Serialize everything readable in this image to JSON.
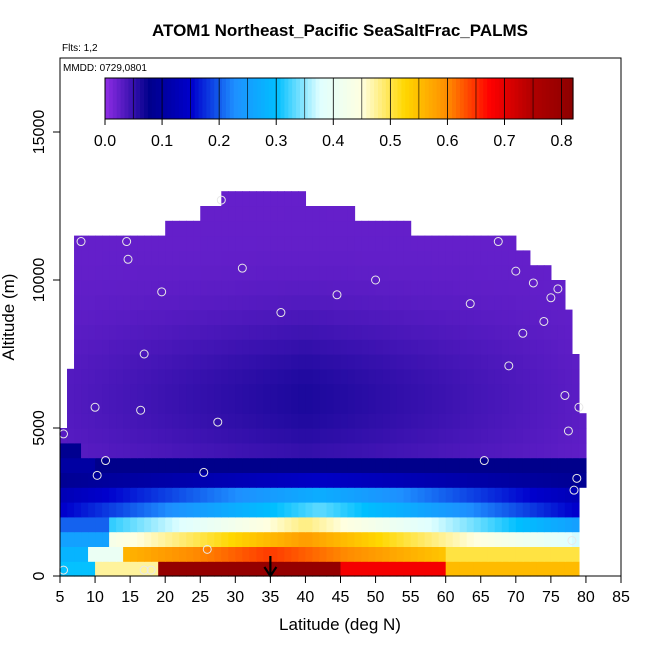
{
  "chart_data": {
    "type": "heatmap",
    "title": "ATOM1 Northeast_Pacific SeaSaltFrac_PALMS",
    "annotations": [
      "Flts: 1,2",
      "MMDD: 0729,0801"
    ],
    "xlabel": "Latitude (deg N)",
    "ylabel": "Altitude (m)",
    "xlim": [
      5,
      85
    ],
    "ylim": [
      0,
      17500
    ],
    "xticks": [
      "5",
      "10",
      "15",
      "20",
      "25",
      "30",
      "35",
      "40",
      "45",
      "50",
      "55",
      "60",
      "65",
      "70",
      "75",
      "80",
      "85"
    ],
    "yticks": [
      "0",
      "5000",
      "10000",
      "15000"
    ],
    "colorbar": {
      "ticks": [
        "0.0",
        "0.1",
        "0.2",
        "0.3",
        "0.4",
        "0.5",
        "0.6",
        "0.7",
        "0.8"
      ],
      "range": [
        0,
        0.82
      ],
      "placement": "top-inside",
      "colors": [
        "#8a2be2",
        "#00008b",
        "#0000cd",
        "#1e90ff",
        "#00bfff",
        "#e0ffff",
        "#ffffe0",
        "#ffd700",
        "#ff8c00",
        "#ff0000",
        "#b00000",
        "#8b0000"
      ]
    },
    "arrow_latitude": 35,
    "envelope": [
      {
        "alt": 500,
        "lat_min": 5,
        "lat_max": 79
      },
      {
        "alt": 1000,
        "lat_min": 5,
        "lat_max": 79
      },
      {
        "alt": 1500,
        "lat_min": 5,
        "lat_max": 79
      },
      {
        "alt": 2000,
        "lat_min": 5,
        "lat_max": 79
      },
      {
        "alt": 2500,
        "lat_min": 5,
        "lat_max": 79
      },
      {
        "alt": 3000,
        "lat_min": 5,
        "lat_max": 79
      },
      {
        "alt": 3500,
        "lat_min": 5,
        "lat_max": 80
      },
      {
        "alt": 4000,
        "lat_min": 5,
        "lat_max": 80
      },
      {
        "alt": 4500,
        "lat_min": 5,
        "lat_max": 80
      },
      {
        "alt": 5000,
        "lat_min": 5,
        "lat_max": 80
      },
      {
        "alt": 5500,
        "lat_min": 6,
        "lat_max": 80
      },
      {
        "alt": 6000,
        "lat_min": 6,
        "lat_max": 79
      },
      {
        "alt": 6500,
        "lat_min": 6,
        "lat_max": 79
      },
      {
        "alt": 7000,
        "lat_min": 6,
        "lat_max": 79
      },
      {
        "alt": 7500,
        "lat_min": 7,
        "lat_max": 79
      },
      {
        "alt": 8000,
        "lat_min": 7,
        "lat_max": 78
      },
      {
        "alt": 8500,
        "lat_min": 7,
        "lat_max": 78
      },
      {
        "alt": 9000,
        "lat_min": 7,
        "lat_max": 78
      },
      {
        "alt": 9500,
        "lat_min": 7,
        "lat_max": 77
      },
      {
        "alt": 10000,
        "lat_min": 7,
        "lat_max": 77
      },
      {
        "alt": 10500,
        "lat_min": 7,
        "lat_max": 75
      },
      {
        "alt": 11000,
        "lat_min": 7,
        "lat_max": 72
      },
      {
        "alt": 11500,
        "lat_min": 7,
        "lat_max": 70
      },
      {
        "alt": 12000,
        "lat_min": 20,
        "lat_max": 55
      },
      {
        "alt": 12500,
        "lat_min": 25,
        "lat_max": 47
      },
      {
        "alt": 13000,
        "lat_min": 28,
        "lat_max": 40
      }
    ],
    "points": [
      {
        "lat": 5.5,
        "alt": 4800
      },
      {
        "lat": 8,
        "alt": 11300
      },
      {
        "lat": 10,
        "alt": 5700
      },
      {
        "lat": 10.3,
        "alt": 3400
      },
      {
        "lat": 11.5,
        "alt": 3900
      },
      {
        "lat": 14.5,
        "alt": 11300
      },
      {
        "lat": 14.7,
        "alt": 10700
      },
      {
        "lat": 16.5,
        "alt": 5600
      },
      {
        "lat": 17,
        "alt": 7500
      },
      {
        "lat": 19.5,
        "alt": 9600
      },
      {
        "lat": 25.5,
        "alt": 3500
      },
      {
        "lat": 27.5,
        "alt": 5200
      },
      {
        "lat": 28,
        "alt": 12700
      },
      {
        "lat": 31,
        "alt": 10400
      },
      {
        "lat": 36.5,
        "alt": 8900
      },
      {
        "lat": 44.5,
        "alt": 9500
      },
      {
        "lat": 50,
        "alt": 10000
      },
      {
        "lat": 63.5,
        "alt": 9200
      },
      {
        "lat": 65.5,
        "alt": 3900
      },
      {
        "lat": 67.5,
        "alt": 11300
      },
      {
        "lat": 69,
        "alt": 7100
      },
      {
        "lat": 70,
        "alt": 10300
      },
      {
        "lat": 71,
        "alt": 8200
      },
      {
        "lat": 72.5,
        "alt": 9900
      },
      {
        "lat": 74,
        "alt": 8600
      },
      {
        "lat": 75,
        "alt": 9400
      },
      {
        "lat": 76,
        "alt": 9700
      },
      {
        "lat": 77,
        "alt": 6100
      },
      {
        "lat": 77.5,
        "alt": 4900
      },
      {
        "lat": 78,
        "alt": 1200
      },
      {
        "lat": 78.3,
        "alt": 2900
      },
      {
        "lat": 78.7,
        "alt": 3300
      },
      {
        "lat": 79,
        "alt": 5700
      },
      {
        "lat": 26,
        "alt": 900
      },
      {
        "lat": 5.5,
        "alt": 200
      },
      {
        "lat": 17,
        "alt": 200
      },
      {
        "lat": 18,
        "alt": 200
      }
    ]
  }
}
